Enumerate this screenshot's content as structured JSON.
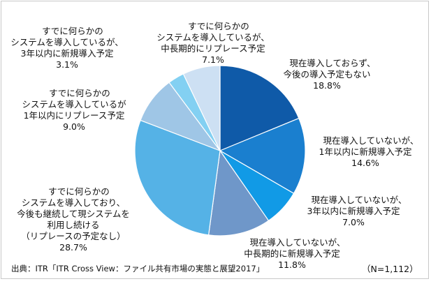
{
  "chart_data": {
    "type": "pie",
    "title": "",
    "start_angle_deg": 0,
    "direction": "clockwise",
    "slices": [
      {
        "label": "現在導入しておらず、\n今後の導入予定もない",
        "value": 18.8,
        "value_label": "18.8%",
        "color": "#0f5aa8"
      },
      {
        "label": "現在導入していないが、\n1年以内に新規導入予定",
        "value": 14.6,
        "value_label": "14.6%",
        "color": "#1a7fcf"
      },
      {
        "label": "現在導入していないが、\n3年以内に新規導入予定",
        "value": 7.0,
        "value_label": "7.0%",
        "color": "#119ae6"
      },
      {
        "label": "現在導入していないが、\n中長期的に新規導入予定",
        "value": 11.8,
        "value_label": "11.8%",
        "color": "#6f97c9"
      },
      {
        "label": "すでに何らかの\nシステムを導入しており、\n今後も継続して現システムを\n利用し続ける\n（リプレースの予定なし）",
        "value": 28.7,
        "value_label": "28.7%",
        "color": "#55b2e6"
      },
      {
        "label": "すでに何らかの\nシステムを導入しているが\n1年以内にリプレース予定",
        "value": 9.0,
        "value_label": "9.0%",
        "color": "#9fc6e6"
      },
      {
        "label": "すでに何らかの\nシステムを導入しているが、\n3年以内に新規導入予定",
        "value": 3.1,
        "value_label": "3.1%",
        "color": "#83d0f2"
      },
      {
        "label": "すでに何らかの\nシステムを導入しているが、\n中長期的にリプレース予定",
        "value": 7.1,
        "value_label": "7.1%",
        "color": "#cde0f3"
      }
    ]
  },
  "source": "出典：ITR「ITR Cross View：ファイル共有市場の実態と展望2017」",
  "sample_size": "（N=1,112）"
}
